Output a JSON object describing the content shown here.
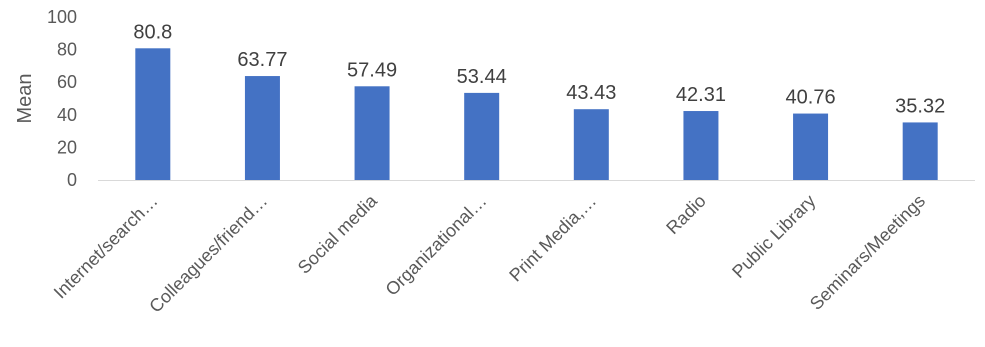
{
  "chart_data": {
    "type": "bar",
    "title": "",
    "xlabel": "",
    "ylabel": "Mean",
    "ylim": [
      0,
      100
    ],
    "yticks": [
      0,
      20,
      40,
      60,
      80,
      100
    ],
    "grid": false,
    "legend": "none",
    "bar_color": "#4472C4",
    "categories": [
      "Internet/search…",
      "Colleagues/friend…",
      "Social media",
      "Organizational…",
      "Print Media,…",
      "Radio",
      "Public Library",
      "Seminars/Meetings"
    ],
    "values": [
      80.8,
      63.77,
      57.49,
      53.44,
      43.43,
      42.31,
      40.76,
      35.32
    ],
    "value_labels": [
      "80.8",
      "63.77",
      "57.49",
      "53.44",
      "43.43",
      "42.31",
      "40.76",
      "35.32"
    ]
  }
}
